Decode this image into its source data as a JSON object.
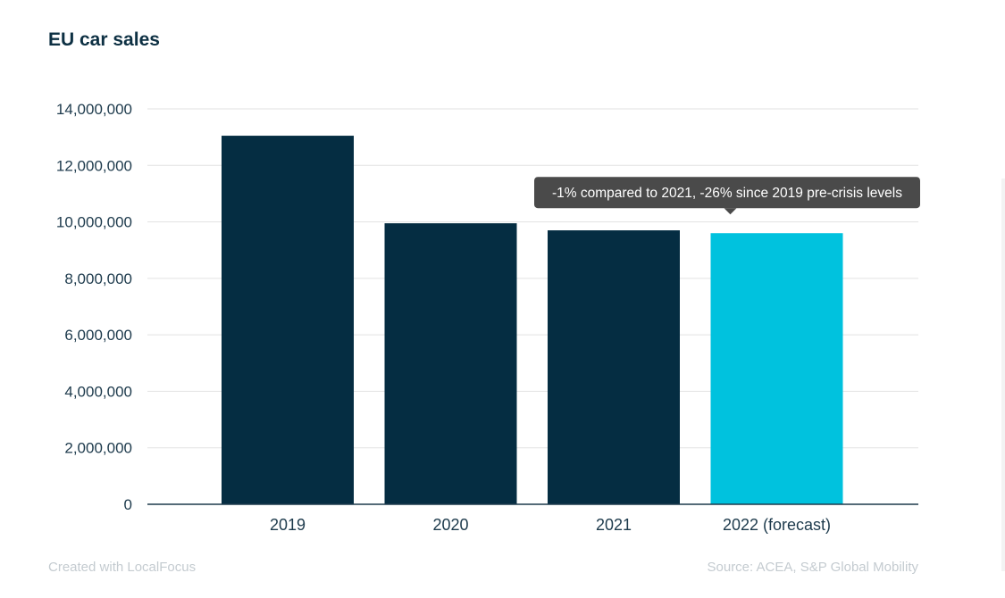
{
  "title": "EU car sales",
  "footer": {
    "created_with": "Created with LocalFocus",
    "source": "Source:  ACEA, S&P Global Mobility"
  },
  "chart_data": {
    "type": "bar",
    "title": "EU car sales",
    "xlabel": "",
    "ylabel": "",
    "categories": [
      "2019",
      "2020",
      "2021",
      "2022 (forecast)"
    ],
    "values": [
      13050000,
      9950000,
      9700000,
      9600000
    ],
    "ylim": [
      0,
      14000000
    ],
    "yticks": [
      0,
      2000000,
      4000000,
      6000000,
      8000000,
      10000000,
      12000000,
      14000000
    ],
    "ytick_labels": [
      "0",
      "2,000,000",
      "4,000,000",
      "6,000,000",
      "8,000,000",
      "10,000,000",
      "12,000,000",
      "14,000,000"
    ],
    "grid": true,
    "colors": {
      "bar": "#052d42",
      "highlight": "#00c2de",
      "grid": "#e2e2e2",
      "axis": "#1d3a4c",
      "tooltip_bg": "#4a4a4a"
    },
    "highlight_index": 3,
    "annotation": {
      "text": "-1% compared to 2021, -26% since 2019 pre-crisis levels",
      "category_index": 3
    }
  }
}
